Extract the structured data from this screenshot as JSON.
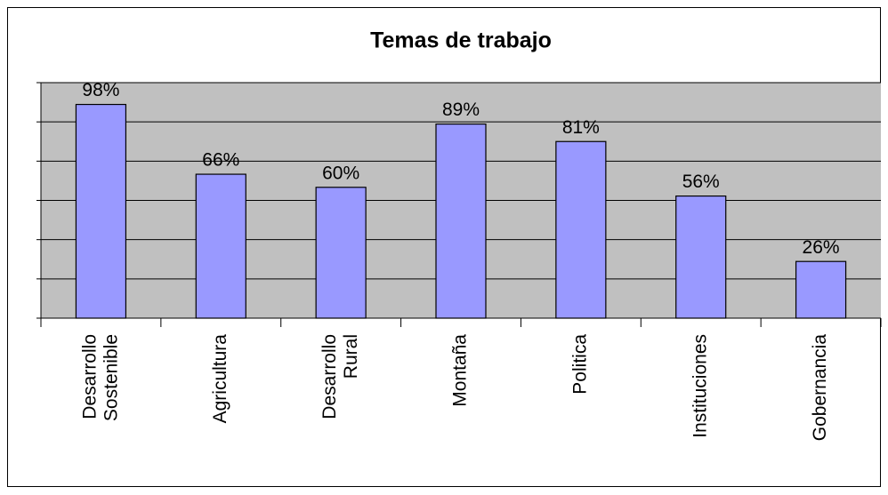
{
  "chart_data": {
    "type": "bar",
    "title": "Temas de trabajo",
    "categories": [
      "Desarrollo Sostenible",
      "Agricultura",
      "Desarrollo Rural",
      "Montaña",
      "Politica",
      "Instituciones",
      "Gobernancia"
    ],
    "values": [
      98,
      66,
      60,
      89,
      81,
      56,
      26
    ],
    "value_labels": [
      "98%",
      "66%",
      "60%",
      "89%",
      "81%",
      "56%",
      "26%"
    ],
    "color": "#9999ff",
    "plot_background": "#c0c0c0",
    "ylim": [
      0,
      108
    ],
    "yticks": [
      0,
      18,
      36,
      54,
      72,
      90,
      108
    ],
    "grid": true
  }
}
